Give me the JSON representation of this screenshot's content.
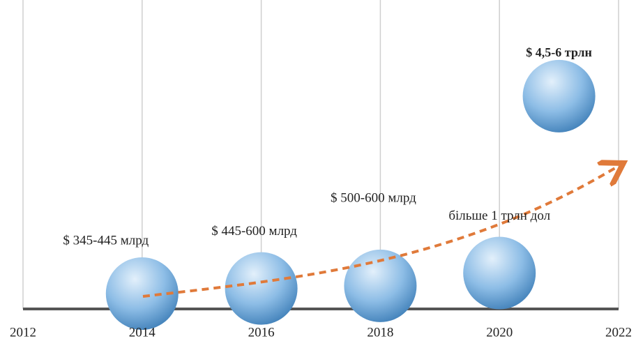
{
  "chart_data": {
    "type": "bubble",
    "x": [
      2014,
      2016,
      2018,
      2020,
      2021
    ],
    "values": [
      0.6,
      0.8,
      0.9,
      1.4,
      8.3
    ],
    "labels": [
      "$ 345-445 млрд",
      "$ 445-600 млрд",
      "$ 500-600 млрд",
      "більше 1 трлн дол",
      "$ 4,5-6 трлн"
    ],
    "color": "#6fa8d6",
    "xlim": [
      2012,
      2022
    ],
    "xticks": [
      2012,
      2014,
      2016,
      2018,
      2020,
      2022
    ],
    "ylim": [
      0,
      10
    ],
    "grid": true
  }
}
